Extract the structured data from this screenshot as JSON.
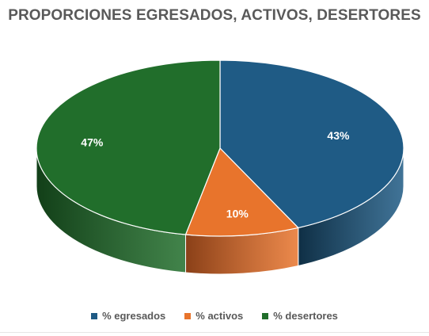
{
  "chart_data": {
    "type": "pie",
    "title": "PROPORCIONES EGRESADOS, ACTIVOS, DESERTORES",
    "categories": [
      "% egresados",
      "% activos",
      "% desertores"
    ],
    "values": [
      43,
      10,
      47
    ],
    "data_labels": [
      "43%",
      "10%",
      "47%"
    ],
    "colors": [
      "#1f5b85",
      "#e8742c",
      "#216e2b"
    ],
    "side_colors": [
      "#0f2f45",
      "#8a4018",
      "#123f18"
    ],
    "legend_placement": "bottom",
    "style": "3d-pie"
  }
}
